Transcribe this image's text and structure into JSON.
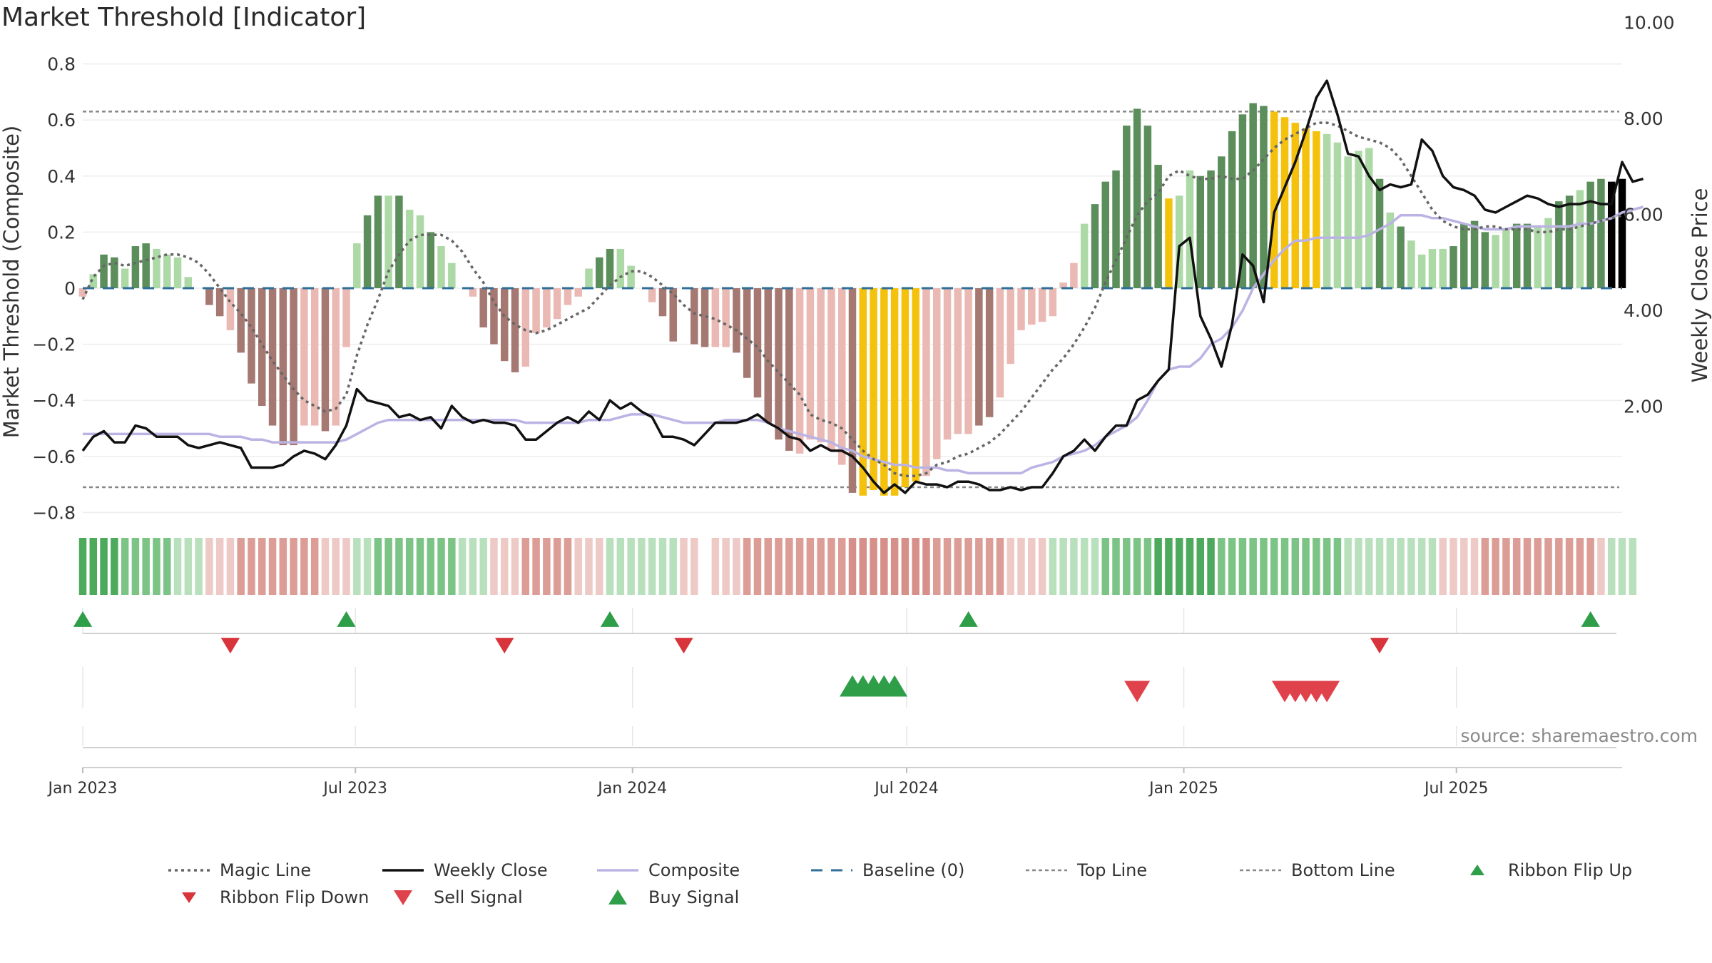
{
  "title": "Market Threshold [Indicator]",
  "source_note": "source: sharemaestro.com",
  "colors": {
    "pos_dark": "#5c8e5c",
    "pos_light": "#add9a7",
    "neg_dark": "#a57872",
    "neg_light": "#eab9b3",
    "extreme": "#f4c20d",
    "magic": "#666666",
    "close": "#111111",
    "composite": "#bbb3e3",
    "baseline": "#2f6f99",
    "threshold": "#888888",
    "up": "#2e9e48",
    "down": "#d8343c",
    "grid": "#eeeeee"
  },
  "chart_data": {
    "type": "bar",
    "title": "Market Threshold [Indicator]",
    "ylabel": "Market Threshold (Composite)",
    "y2label": "Weekly Close Price",
    "ylim": [
      -0.8,
      0.8
    ],
    "y2lim": [
      2.0,
      10.0
    ],
    "yticks": [
      0.8,
      0.6,
      0.4,
      0.2,
      0,
      -0.2,
      -0.4,
      -0.6,
      -0.8
    ],
    "ytick_labels": [
      "0.8",
      "0.6",
      "0.4",
      "0.2",
      "0",
      "−0.2",
      "−0.4",
      "−0.6",
      "−0.8"
    ],
    "y2ticks": [
      10,
      8,
      6,
      4,
      2
    ],
    "y2tick_labels": [
      "10.00",
      "8.00",
      "6.00",
      "4.00",
      "2.00"
    ],
    "x_start": "2023-01-01",
    "x_end": "2025-10-19",
    "xticks": [
      {
        "date": "2023-01-01",
        "label": "Jan 2023"
      },
      {
        "date": "2023-07-01",
        "label": "Jul 2023"
      },
      {
        "date": "2024-01-01",
        "label": "Jan 2024"
      },
      {
        "date": "2024-07-01",
        "label": "Jul 2024"
      },
      {
        "date": "2025-01-01",
        "label": "Jan 2025"
      },
      {
        "date": "2025-07-01",
        "label": "Jul 2025"
      }
    ],
    "top_line": 0.63,
    "bottom_line": -0.71,
    "baseline": 0,
    "weeks": 147,
    "first_week": "2023-01-01",
    "composite": [
      -0.03,
      0.05,
      0.12,
      0.11,
      0.07,
      0.15,
      0.16,
      0.14,
      0.12,
      0.11,
      0.04,
      0.0,
      -0.06,
      -0.1,
      -0.15,
      -0.23,
      -0.34,
      -0.42,
      -0.49,
      -0.56,
      -0.56,
      -0.49,
      -0.49,
      -0.51,
      -0.49,
      -0.21,
      0.16,
      0.26,
      0.33,
      0.33,
      0.33,
      0.28,
      0.26,
      0.2,
      0.15,
      0.09,
      0.0,
      -0.03,
      -0.14,
      -0.2,
      -0.26,
      -0.3,
      -0.28,
      -0.16,
      -0.14,
      -0.11,
      -0.06,
      -0.03,
      0.07,
      0.11,
      0.14,
      0.14,
      0.08,
      0.0,
      -0.05,
      -0.1,
      -0.19,
      0.0,
      -0.2,
      -0.21,
      -0.21,
      -0.21,
      -0.23,
      -0.32,
      -0.39,
      -0.48,
      -0.54,
      -0.58,
      -0.59,
      -0.54,
      -0.55,
      -0.58,
      -0.63,
      -0.73,
      -0.74,
      -0.72,
      -0.74,
      -0.74,
      -0.71,
      -0.69,
      -0.67,
      -0.61,
      -0.54,
      -0.52,
      -0.52,
      -0.49,
      -0.46,
      -0.39,
      -0.27,
      -0.15,
      -0.13,
      -0.12,
      -0.1,
      0.02,
      0.09,
      0.23,
      0.3,
      0.38,
      0.42,
      0.58,
      0.64,
      0.58,
      0.44,
      0.32,
      0.33,
      0.42,
      0.4,
      0.42,
      0.47,
      0.56,
      0.62,
      0.66,
      0.65,
      0.63,
      0.61,
      0.59,
      0.57,
      0.56,
      0.55,
      0.52,
      0.47,
      0.49,
      0.5,
      0.39,
      0.27,
      0.22,
      0.17,
      0.12,
      0.14,
      0.14,
      0.15,
      0.23,
      0.24,
      0.2,
      0.19,
      0.21,
      0.23,
      0.23,
      0.22,
      0.25,
      0.31,
      0.33,
      0.35,
      0.38,
      0.39,
      0.38,
      0.39
    ],
    "bar_class": [
      "ld",
      "pl",
      "pd",
      "pd",
      "pl",
      "pd",
      "pd",
      "pl",
      "pl",
      "pl",
      "pl",
      "zz",
      "nd",
      "nd",
      "nl",
      "nd",
      "nd",
      "nd",
      "nd",
      "nd",
      "nd",
      "nl",
      "nl",
      "nd",
      "nl",
      "nl",
      "pl",
      "pd",
      "pd",
      "pl",
      "pd",
      "pl",
      "pl",
      "pd",
      "pl",
      "pl",
      "zz",
      "nl",
      "nd",
      "nd",
      "nd",
      "nd",
      "nl",
      "nl",
      "nl",
      "nl",
      "nl",
      "nl",
      "pl",
      "pd",
      "pd",
      "pl",
      "pl",
      "zz",
      "nl",
      "nd",
      "nd",
      "zz",
      "nd",
      "nd",
      "nl",
      "nl",
      "nd",
      "nd",
      "nd",
      "nd",
      "nd",
      "nd",
      "nl",
      "nl",
      "nl",
      "nl",
      "nl",
      "nd",
      "ex",
      "ex",
      "ex",
      "ex",
      "ex",
      "ex",
      "nl",
      "nl",
      "nl",
      "nl",
      "nl",
      "nd",
      "nd",
      "nl",
      "nl",
      "nl",
      "nl",
      "nl",
      "nl",
      "nl",
      "nl",
      "pl",
      "pd",
      "pd",
      "pd",
      "pd",
      "pd",
      "pd",
      "pd",
      "ex",
      "pl",
      "pl",
      "pd",
      "pd",
      "pd",
      "pd",
      "pd",
      "pd",
      "pd",
      "ex",
      "ex",
      "ex",
      "ex",
      "ex",
      "pl",
      "pl",
      "pl",
      "pl",
      "pl",
      "pd",
      "pl",
      "pd",
      "pl",
      "pl",
      "pl",
      "pl",
      "pd",
      "pd",
      "pd",
      "pd",
      "pl",
      "pl",
      "pd",
      "pd",
      "pl",
      "pl",
      "pd",
      "pd",
      "pl",
      "pd",
      "pd"
    ],
    "magic_line": [
      -0.04,
      0.04,
      0.08,
      0.09,
      0.08,
      0.09,
      0.1,
      0.11,
      0.12,
      0.12,
      0.11,
      0.09,
      0.05,
      0.0,
      -0.05,
      -0.09,
      -0.14,
      -0.2,
      -0.26,
      -0.31,
      -0.36,
      -0.4,
      -0.42,
      -0.44,
      -0.43,
      -0.38,
      -0.24,
      -0.13,
      -0.04,
      0.06,
      0.12,
      0.17,
      0.19,
      0.19,
      0.19,
      0.17,
      0.13,
      0.07,
      0.02,
      -0.05,
      -0.1,
      -0.13,
      -0.15,
      -0.16,
      -0.15,
      -0.13,
      -0.11,
      -0.09,
      -0.07,
      -0.03,
      0.01,
      0.04,
      0.06,
      0.06,
      0.04,
      0.01,
      -0.02,
      -0.06,
      -0.09,
      -0.1,
      -0.11,
      -0.13,
      -0.15,
      -0.18,
      -0.21,
      -0.26,
      -0.3,
      -0.34,
      -0.38,
      -0.45,
      -0.47,
      -0.48,
      -0.5,
      -0.54,
      -0.58,
      -0.61,
      -0.63,
      -0.66,
      -0.67,
      -0.67,
      -0.66,
      -0.63,
      -0.62,
      -0.6,
      -0.59,
      -0.57,
      -0.55,
      -0.52,
      -0.48,
      -0.44,
      -0.39,
      -0.34,
      -0.29,
      -0.25,
      -0.2,
      -0.14,
      -0.07,
      0.02,
      0.1,
      0.18,
      0.26,
      0.31,
      0.34,
      0.4,
      0.42,
      0.4,
      0.39,
      0.39,
      0.4,
      0.39,
      0.39,
      0.42,
      0.46,
      0.5,
      0.53,
      0.55,
      0.57,
      0.59,
      0.59,
      0.58,
      0.56,
      0.54,
      0.53,
      0.52,
      0.5,
      0.46,
      0.4,
      0.34,
      0.28,
      0.24,
      0.22,
      0.21,
      0.21,
      0.22,
      0.22,
      0.21,
      0.21,
      0.21,
      0.2,
      0.2,
      0.21,
      0.21,
      0.22,
      0.23,
      0.24,
      0.25,
      0.26,
      0.27
    ],
    "composite_line": [
      -0.52,
      -0.52,
      -0.52,
      -0.52,
      -0.52,
      -0.52,
      -0.52,
      -0.52,
      -0.52,
      -0.52,
      -0.52,
      -0.52,
      -0.52,
      -0.53,
      -0.53,
      -0.53,
      -0.54,
      -0.54,
      -0.55,
      -0.55,
      -0.55,
      -0.55,
      -0.55,
      -0.55,
      -0.55,
      -0.54,
      -0.52,
      -0.5,
      -0.48,
      -0.47,
      -0.47,
      -0.47,
      -0.47,
      -0.47,
      -0.47,
      -0.47,
      -0.47,
      -0.47,
      -0.47,
      -0.47,
      -0.47,
      -0.47,
      -0.48,
      -0.48,
      -0.48,
      -0.48,
      -0.48,
      -0.48,
      -0.47,
      -0.47,
      -0.47,
      -0.46,
      -0.45,
      -0.45,
      -0.45,
      -0.46,
      -0.47,
      -0.48,
      -0.48,
      -0.48,
      -0.48,
      -0.47,
      -0.47,
      -0.47,
      -0.47,
      -0.48,
      -0.5,
      -0.51,
      -0.52,
      -0.53,
      -0.54,
      -0.55,
      -0.57,
      -0.58,
      -0.6,
      -0.61,
      -0.62,
      -0.63,
      -0.63,
      -0.64,
      -0.64,
      -0.64,
      -0.65,
      -0.65,
      -0.66,
      -0.66,
      -0.66,
      -0.66,
      -0.66,
      -0.66,
      -0.64,
      -0.63,
      -0.62,
      -0.6,
      -0.59,
      -0.58,
      -0.56,
      -0.53,
      -0.51,
      -0.49,
      -0.46,
      -0.4,
      -0.33,
      -0.29,
      -0.28,
      -0.28,
      -0.25,
      -0.2,
      -0.18,
      -0.14,
      -0.08,
      0.0,
      0.05,
      0.1,
      0.14,
      0.17,
      0.17,
      0.18,
      0.18,
      0.18,
      0.18,
      0.18,
      0.19,
      0.21,
      0.23,
      0.26,
      0.26,
      0.26,
      0.25,
      0.25,
      0.24,
      0.23,
      0.22,
      0.21,
      0.21,
      0.21,
      0.22,
      0.22,
      0.22,
      0.22,
      0.22,
      0.22,
      0.23,
      0.23,
      0.24,
      0.25,
      0.27,
      0.28,
      0.29
    ],
    "weekly_close": [
      -0.58,
      -0.53,
      -0.51,
      -0.55,
      -0.55,
      -0.49,
      -0.5,
      -0.53,
      -0.53,
      -0.53,
      -0.56,
      -0.57,
      -0.56,
      -0.55,
      -0.56,
      -0.57,
      -0.64,
      -0.64,
      -0.64,
      -0.63,
      -0.6,
      -0.58,
      -0.59,
      -0.61,
      -0.56,
      -0.49,
      -0.36,
      -0.4,
      -0.41,
      -0.42,
      -0.46,
      -0.45,
      -0.47,
      -0.46,
      -0.5,
      -0.42,
      -0.46,
      -0.48,
      -0.47,
      -0.48,
      -0.48,
      -0.49,
      -0.54,
      -0.54,
      -0.51,
      -0.48,
      -0.46,
      -0.48,
      -0.44,
      -0.47,
      -0.4,
      -0.43,
      -0.41,
      -0.44,
      -0.46,
      -0.53,
      -0.53,
      -0.54,
      -0.56,
      -0.52,
      -0.48,
      -0.48,
      -0.48,
      -0.47,
      -0.45,
      -0.48,
      -0.5,
      -0.53,
      -0.54,
      -0.58,
      -0.56,
      -0.58,
      -0.58,
      -0.6,
      -0.64,
      -0.69,
      -0.73,
      -0.7,
      -0.73,
      -0.69,
      -0.7,
      -0.7,
      -0.71,
      -0.69,
      -0.69,
      -0.7,
      -0.72,
      -0.72,
      -0.71,
      -0.72,
      -0.71,
      -0.71,
      -0.66,
      -0.6,
      -0.58,
      -0.54,
      -0.58,
      -0.53,
      -0.49,
      -0.49,
      -0.4,
      -0.38,
      -0.33,
      -0.29,
      0.15,
      0.18,
      -0.1,
      -0.18,
      -0.28,
      -0.13,
      0.12,
      0.08,
      -0.05,
      0.27,
      0.36,
      0.45,
      0.56,
      0.68,
      0.74,
      0.62,
      0.48,
      0.47,
      0.4,
      0.35,
      0.37,
      0.36,
      0.37,
      0.53,
      0.49,
      0.4,
      0.36,
      0.35,
      0.33,
      0.28,
      0.27,
      0.29,
      0.31,
      0.33,
      0.32,
      0.3,
      0.29,
      0.3,
      0.3,
      0.31,
      0.3,
      0.3,
      0.45,
      0.38,
      0.39
    ],
    "ribbon": [
      3,
      3,
      3,
      3,
      2,
      2,
      2,
      2,
      2,
      1,
      1,
      1,
      -1,
      -1,
      -1,
      -2,
      -2,
      -2,
      -2,
      -2,
      -2,
      -2,
      -2,
      -1,
      -1,
      -1,
      1,
      1,
      2,
      2,
      2,
      2,
      2,
      2,
      2,
      2,
      1,
      1,
      1,
      -1,
      -1,
      -1,
      -2,
      -2,
      -2,
      -2,
      -2,
      -1,
      -1,
      -1,
      1,
      1,
      1,
      1,
      1,
      1,
      1,
      -1,
      -1,
      null,
      -1,
      -1,
      -1,
      -2,
      -2,
      -2,
      -2,
      -2,
      -2,
      -2,
      -2,
      -2,
      -2,
      -3,
      -3,
      -3,
      -3,
      -3,
      -3,
      -3,
      -3,
      -2,
      -2,
      -2,
      -2,
      -2,
      -2,
      -2,
      -1,
      -1,
      -1,
      -1,
      1,
      1,
      1,
      1,
      1,
      2,
      2,
      2,
      2,
      2,
      3,
      3,
      3,
      3,
      3,
      3,
      2,
      2,
      2,
      2,
      2,
      2,
      2,
      2,
      2,
      2,
      2,
      2,
      1,
      1,
      1,
      1,
      1,
      1,
      1,
      1,
      1,
      -1,
      -1,
      -1,
      -1,
      -2,
      -2,
      -2,
      -2,
      -2,
      -2,
      -2,
      -2,
      -2,
      -2,
      -2,
      -1,
      1,
      1,
      1
    ],
    "ribbon_flip_up": [
      "2023-01-01",
      "2023-06-25",
      "2023-12-17",
      "2024-08-11",
      "2025-09-28"
    ],
    "ribbon_flip_down": [
      "2023-04-09",
      "2023-10-08",
      "2024-02-04",
      "2025-05-11"
    ],
    "sell_signals": [
      "2024-12-01",
      "2025-03-09",
      "2025-03-16",
      "2025-03-23",
      "2025-03-30",
      "2025-04-06"
    ],
    "buy_signals": [
      "2024-05-26",
      "2024-06-02",
      "2024-06-09",
      "2024-06-16",
      "2024-06-23"
    ],
    "legend": [
      {
        "label": "Magic Line",
        "kind": "magic"
      },
      {
        "label": "Weekly Close",
        "kind": "close"
      },
      {
        "label": "Composite",
        "kind": "composite"
      },
      {
        "label": "Baseline (0)",
        "kind": "baseline"
      },
      {
        "label": "Top Line",
        "kind": "threshold"
      },
      {
        "label": "Bottom Line",
        "kind": "threshold"
      },
      {
        "label": "Ribbon Flip Up",
        "kind": "flip_up"
      },
      {
        "label": "Ribbon Flip Down",
        "kind": "flip_down"
      },
      {
        "label": "Sell Signal",
        "kind": "sell"
      },
      {
        "label": "Buy Signal",
        "kind": "buy"
      }
    ]
  }
}
